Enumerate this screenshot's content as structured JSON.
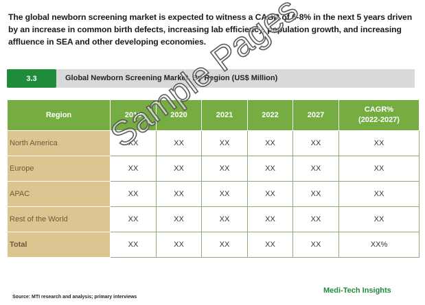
{
  "intro_text": "The global newborn screening market is expected to witness a CAGR of 6-8% in the next 5 years driven by an increase in common birth defects, increasing lab efficiency, population growth, and increasing affluence in SEA and other developing economies.",
  "section": {
    "number": "3.3",
    "title": "Global Newborn Screening Market, By Region (US$ Million)"
  },
  "table": {
    "headers": [
      "Region",
      "2019",
      "2020",
      "2021",
      "2022",
      "2027",
      "CAGR%",
      "(2022-2027)"
    ],
    "rows": [
      {
        "region": "North America",
        "values": [
          "XX",
          "XX",
          "XX",
          "XX",
          "XX",
          "XX"
        ]
      },
      {
        "region": "Europe",
        "values": [
          "XX",
          "XX",
          "XX",
          "XX",
          "XX",
          "XX"
        ]
      },
      {
        "region": "APAC",
        "values": [
          "XX",
          "XX",
          "XX",
          "XX",
          "XX",
          "XX"
        ]
      },
      {
        "region": "Rest of the World",
        "values": [
          "XX",
          "XX",
          "XX",
          "XX",
          "XX",
          "XX"
        ]
      },
      {
        "region": "Total",
        "values": [
          "XX",
          "XX",
          "XX",
          "XX",
          "XX",
          "XX%"
        ]
      }
    ]
  },
  "watermark": "Sample Pages",
  "source": "Source: MTI research and analysis; primary interviews",
  "brand": "Medi-Tech Insights",
  "colors": {
    "header_green": "#76ad42",
    "section_green": "#1e8c3a",
    "region_tan": "#ddc592",
    "bar_gray": "#d9d9d9"
  }
}
